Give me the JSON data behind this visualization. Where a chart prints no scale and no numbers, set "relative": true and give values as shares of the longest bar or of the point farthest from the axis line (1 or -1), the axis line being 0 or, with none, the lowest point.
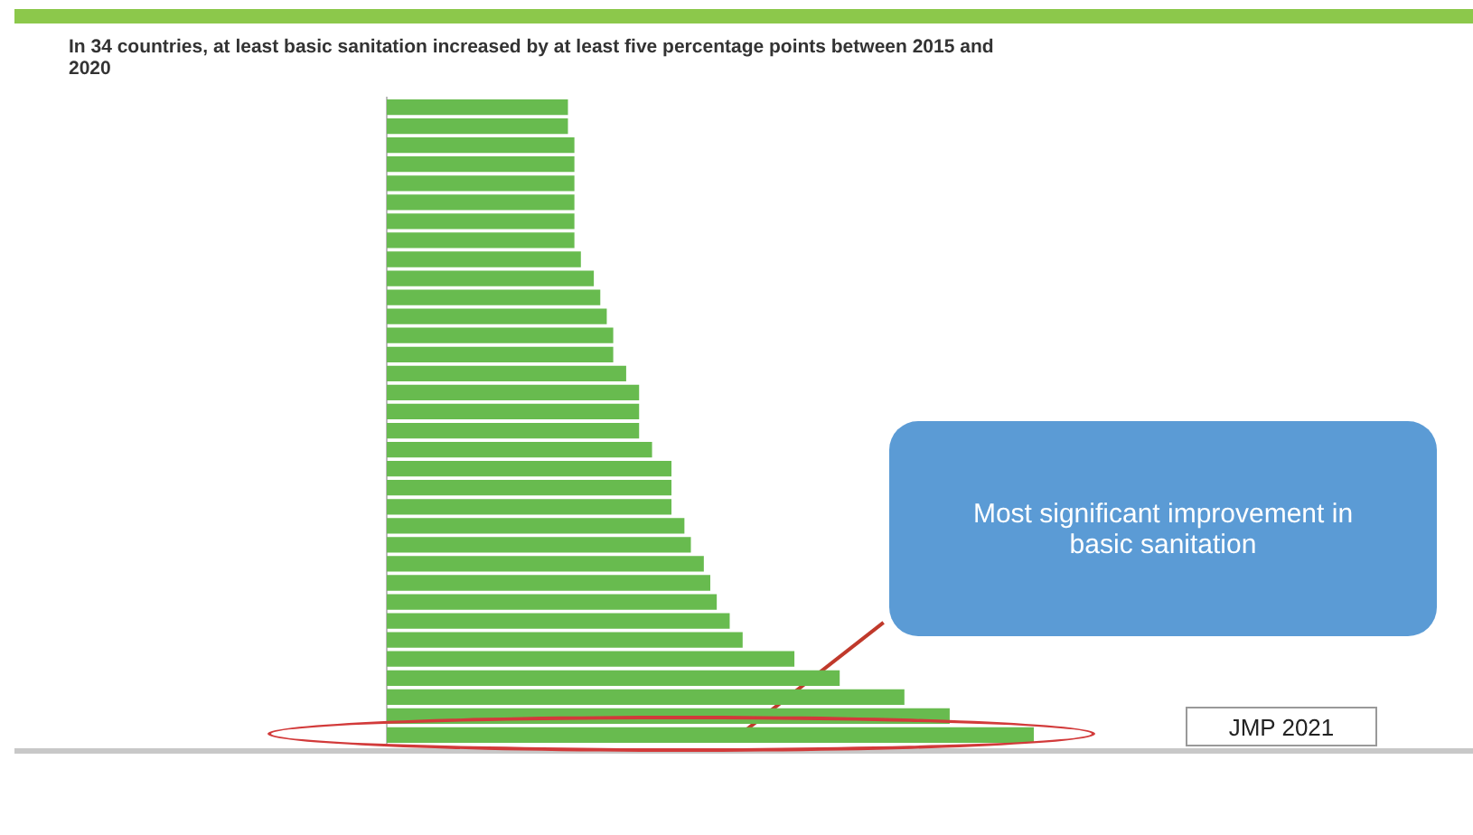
{
  "chart_data": {
    "type": "bar",
    "orientation": "horizontal",
    "relative": true,
    "title": "In 34 countries, at least basic sanitation increased by at least five percentage points between 2015 and 2020",
    "categories": [
      null,
      null,
      null,
      null,
      null,
      null,
      null,
      null,
      null,
      null,
      null,
      null,
      null,
      null,
      null,
      null,
      null,
      null,
      null,
      null,
      null,
      null,
      null,
      null,
      null,
      null,
      null,
      null,
      null,
      null,
      null,
      null,
      null,
      null
    ],
    "values": [
      0.28,
      0.28,
      0.29,
      0.29,
      0.29,
      0.29,
      0.29,
      0.29,
      0.3,
      0.32,
      0.33,
      0.34,
      0.35,
      0.35,
      0.37,
      0.39,
      0.39,
      0.39,
      0.41,
      0.44,
      0.44,
      0.44,
      0.46,
      0.47,
      0.49,
      0.5,
      0.51,
      0.53,
      0.55,
      0.63,
      0.7,
      0.8,
      0.87,
      1
    ],
    "color": "#68bb4f",
    "annotations": [
      "Most significant improvement in basic sanitation",
      "JMP 2021"
    ]
  }
}
